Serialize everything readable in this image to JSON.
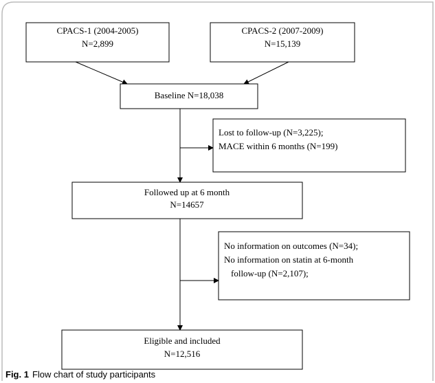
{
  "nodes": [
    {
      "lines": [
        "CPACS-1 (2004-2005)",
        "N=2,899"
      ]
    },
    {
      "lines": [
        "CPACS-2 (2007-2009)",
        "N=15,139"
      ]
    },
    {
      "lines": [
        "Baseline N=18,038"
      ]
    },
    {
      "lines": [
        "Lost to follow-up (N=3,225);",
        "MACE within 6 months (N=199)"
      ]
    },
    {
      "lines": [
        "Followed up at 6 month",
        "N=14657"
      ]
    },
    {
      "lines": [
        "No information on outcomes (N=34);",
        "No information on statin at 6-month",
        "follow-up (N=2,107);"
      ]
    },
    {
      "lines": [
        "Eligible and included",
        "N=12,516"
      ]
    }
  ],
  "caption": {
    "label": "Fig. 1",
    "text": "Flow chart of study participants"
  }
}
